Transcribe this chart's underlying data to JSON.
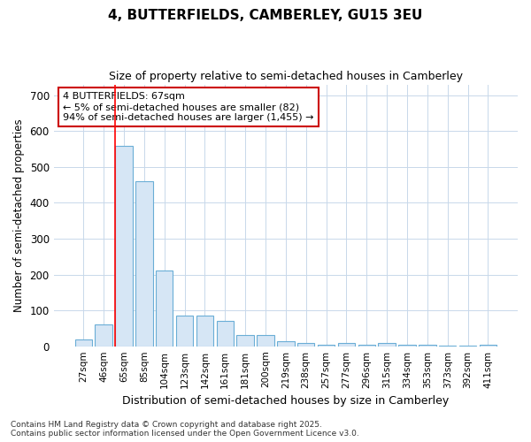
{
  "title": "4, BUTTERFIELDS, CAMBERLEY, GU15 3EU",
  "subtitle": "Size of property relative to semi-detached houses in Camberley",
  "xlabel": "Distribution of semi-detached houses by size in Camberley",
  "ylabel": "Number of semi-detached properties",
  "bin_labels": [
    "27sqm",
    "46sqm",
    "65sqm",
    "85sqm",
    "104sqm",
    "123sqm",
    "142sqm",
    "161sqm",
    "181sqm",
    "200sqm",
    "219sqm",
    "238sqm",
    "257sqm",
    "277sqm",
    "296sqm",
    "315sqm",
    "334sqm",
    "353sqm",
    "373sqm",
    "392sqm",
    "411sqm"
  ],
  "bar_heights": [
    18,
    60,
    560,
    460,
    210,
    85,
    85,
    70,
    32,
    32,
    15,
    10,
    3,
    10,
    3,
    8,
    3,
    3,
    2,
    2,
    5
  ],
  "bar_color": "#d6e6f5",
  "bar_edge_color": "#6aaed6",
  "grid_color": "#c8d8ea",
  "background_color": "#ffffff",
  "red_line_bar_index": 2,
  "annotation_text": "4 BUTTERFIELDS: 67sqm\n← 5% of semi-detached houses are smaller (82)\n94% of semi-detached houses are larger (1,455) →",
  "annotation_box_facecolor": "#ffffff",
  "annotation_box_edgecolor": "#cc0000",
  "ylim": [
    0,
    730
  ],
  "yticks": [
    0,
    100,
    200,
    300,
    400,
    500,
    600,
    700
  ],
  "footer_line1": "Contains HM Land Registry data © Crown copyright and database right 2025.",
  "footer_line2": "Contains public sector information licensed under the Open Government Licence v3.0."
}
